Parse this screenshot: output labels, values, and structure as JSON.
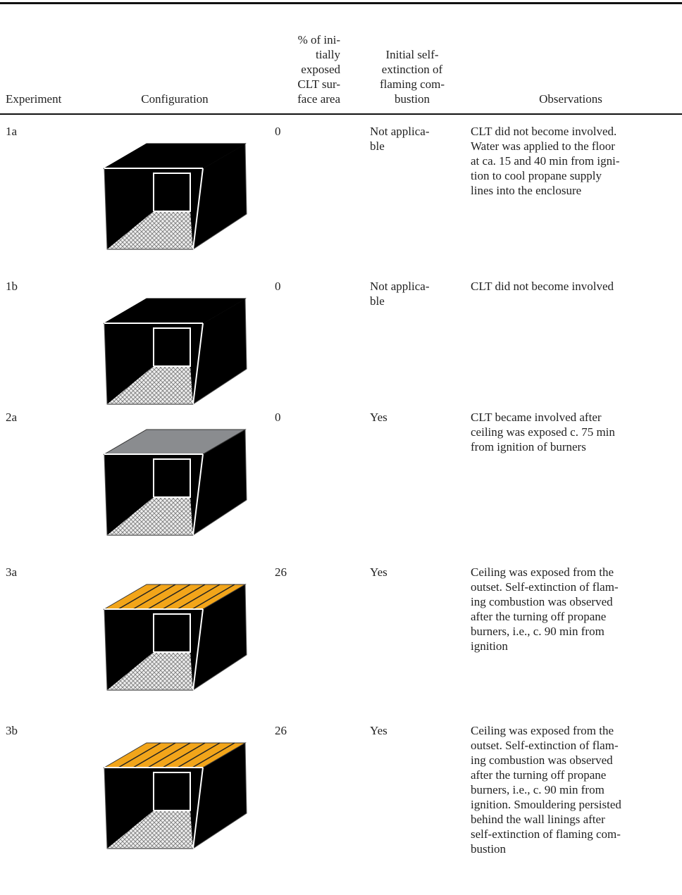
{
  "table": {
    "header": [
      [
        "Experiment"
      ],
      [
        "Configuration"
      ],
      [
        "% of ini-",
        "tially",
        "exposed",
        "CLT sur-",
        "face area"
      ],
      [
        "Initial self-",
        "extinction of",
        "flaming com-",
        "bustion"
      ],
      [
        "Observations"
      ]
    ],
    "rows": [
      {
        "experiment": "1a",
        "exposed": 0,
        "self_extinction": [
          "Not applica-",
          "ble"
        ],
        "observations": [
          "CLT did not become involved.",
          "Water was applied to the floor",
          "at ca. 15 and 40 min from igni-",
          "tion to cool propane supply",
          "lines into the enclosure"
        ]
      },
      {
        "experiment": "1b",
        "exposed": 0,
        "self_extinction": [
          "Not applica-",
          "ble"
        ],
        "observations": [
          "CLT did not become involved"
        ]
      },
      {
        "experiment": "2a",
        "exposed": 0,
        "self_extinction": [
          "Yes"
        ],
        "observations": [
          "CLT became involved after",
          "ceiling was exposed c. 75 min",
          "from ignition of burners"
        ]
      },
      {
        "experiment": "3a",
        "exposed": 26,
        "self_extinction": [
          "Yes"
        ],
        "observations": [
          "Ceiling was exposed from the",
          "outset. Self-extinction of flam-",
          "ing combustion was observed",
          "after the turning off propane",
          "burners, i.e., c. 90 min from",
          "ignition"
        ]
      },
      {
        "experiment": "3b",
        "exposed": 26,
        "self_extinction": [
          "Yes"
        ],
        "observations": [
          "Ceiling was exposed from the",
          "outset. Self-extinction of flam-",
          "ing combustion was observed",
          "after the turning off propane",
          "burners, i.e., c. 90 min from",
          "ignition. Smouldering persisted",
          "behind the wall linings after",
          "self-extinction of flaming com-",
          "bustion"
        ]
      }
    ]
  }
}
